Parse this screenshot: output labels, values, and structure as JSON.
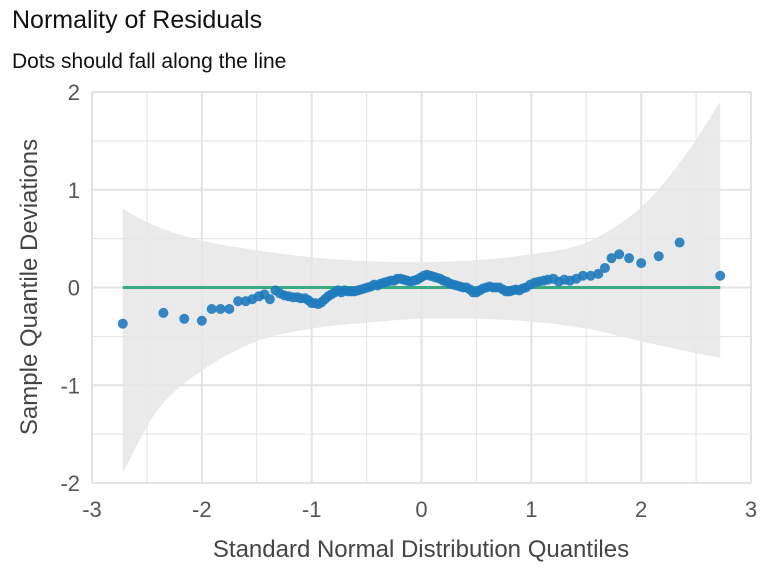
{
  "title": "Normality of Residuals",
  "subtitle": "Dots should fall along the line",
  "chart_data": {
    "type": "scatter",
    "title": "Normality of Residuals",
    "subtitle": "Dots should fall along the line",
    "xlabel": "Standard Normal Distribution Quantiles",
    "ylabel": "Sample Quantile Deviations",
    "xlim": [
      -3,
      3
    ],
    "ylim": [
      -2,
      2
    ],
    "x_ticks": [
      -3,
      -2,
      -1,
      0,
      1,
      2,
      3
    ],
    "x_tick_labels": [
      "-3",
      "-2",
      "-1",
      "0",
      "1",
      "2",
      "3"
    ],
    "y_ticks": [
      -2,
      -1,
      0,
      1,
      2
    ],
    "y_tick_labels": [
      "-2",
      "-1",
      "0",
      "1",
      "2"
    ],
    "grid": true,
    "colors": {
      "points": "#1f7bbd",
      "reference_line": "#3aaa80",
      "band": "#e6e6e6",
      "grid": "#e3e3e3"
    },
    "reference_line": {
      "x": [
        -2.72,
        2.72
      ],
      "y": [
        0,
        0
      ]
    },
    "band": {
      "x": [
        -2.72,
        -2.4,
        -2.0,
        -1.5,
        -1.0,
        -0.5,
        0.0,
        0.5,
        1.0,
        1.5,
        2.0,
        2.4,
        2.72
      ],
      "upper": [
        0.8,
        0.62,
        0.48,
        0.38,
        0.31,
        0.27,
        0.26,
        0.28,
        0.34,
        0.46,
        0.82,
        1.35,
        1.9
      ],
      "lower": [
        -1.9,
        -1.25,
        -0.85,
        -0.55,
        -0.42,
        -0.36,
        -0.32,
        -0.32,
        -0.35,
        -0.42,
        -0.55,
        -0.65,
        -0.72
      ]
    },
    "points": {
      "x": [
        -2.72,
        -2.35,
        -2.16,
        -2.0,
        -1.91,
        -1.83,
        -1.75,
        -1.67,
        -1.6,
        -1.54,
        -1.48,
        -1.43,
        -1.38,
        -1.33,
        -1.29,
        -1.25,
        -1.21,
        -1.17,
        -1.13,
        -1.1,
        -1.06,
        -1.03,
        -1.0,
        -0.97,
        -0.94,
        -0.91,
        -0.88,
        -0.85,
        -0.82,
        -0.79,
        -0.76,
        -0.73,
        -0.7,
        -0.67,
        -0.64,
        -0.61,
        -0.58,
        -0.55,
        -0.52,
        -0.49,
        -0.46,
        -0.43,
        -0.4,
        -0.37,
        -0.34,
        -0.31,
        -0.28,
        -0.25,
        -0.22,
        -0.19,
        -0.16,
        -0.13,
        -0.1,
        -0.07,
        -0.04,
        -0.01,
        0.02,
        0.05,
        0.08,
        0.11,
        0.14,
        0.17,
        0.2,
        0.23,
        0.26,
        0.29,
        0.32,
        0.35,
        0.38,
        0.41,
        0.44,
        0.47,
        0.5,
        0.53,
        0.56,
        0.59,
        0.62,
        0.65,
        0.68,
        0.71,
        0.74,
        0.77,
        0.8,
        0.83,
        0.86,
        0.89,
        0.92,
        0.95,
        0.99,
        1.03,
        1.07,
        1.11,
        1.15,
        1.2,
        1.25,
        1.3,
        1.35,
        1.41,
        1.47,
        1.54,
        1.61,
        1.67,
        1.73,
        1.8,
        1.89,
        2.0,
        2.16,
        2.35,
        2.72
      ],
      "y": [
        -0.37,
        -0.26,
        -0.32,
        -0.34,
        -0.22,
        -0.22,
        -0.22,
        -0.14,
        -0.14,
        -0.12,
        -0.09,
        -0.07,
        -0.12,
        -0.03,
        -0.06,
        -0.08,
        -0.09,
        -0.1,
        -0.1,
        -0.11,
        -0.11,
        -0.13,
        -0.16,
        -0.16,
        -0.17,
        -0.15,
        -0.12,
        -0.09,
        -0.07,
        -0.05,
        -0.03,
        -0.05,
        -0.03,
        -0.04,
        -0.04,
        -0.04,
        -0.03,
        -0.02,
        -0.01,
        0.0,
        0.01,
        0.03,
        0.02,
        0.04,
        0.05,
        0.06,
        0.07,
        0.07,
        0.09,
        0.09,
        0.08,
        0.07,
        0.06,
        0.07,
        0.08,
        0.1,
        0.12,
        0.13,
        0.12,
        0.11,
        0.1,
        0.09,
        0.07,
        0.06,
        0.04,
        0.03,
        0.02,
        0.01,
        0.0,
        0.0,
        -0.02,
        -0.05,
        -0.05,
        -0.03,
        -0.01,
        0.0,
        0.01,
        0.0,
        0.0,
        0.0,
        -0.02,
        -0.04,
        -0.04,
        -0.03,
        -0.02,
        -0.03,
        -0.01,
        0.0,
        0.03,
        0.05,
        0.06,
        0.07,
        0.08,
        0.09,
        0.06,
        0.08,
        0.07,
        0.09,
        0.12,
        0.12,
        0.14,
        0.2,
        0.3,
        0.34,
        0.3,
        0.25,
        0.32,
        0.46,
        0.12
      ]
    }
  }
}
